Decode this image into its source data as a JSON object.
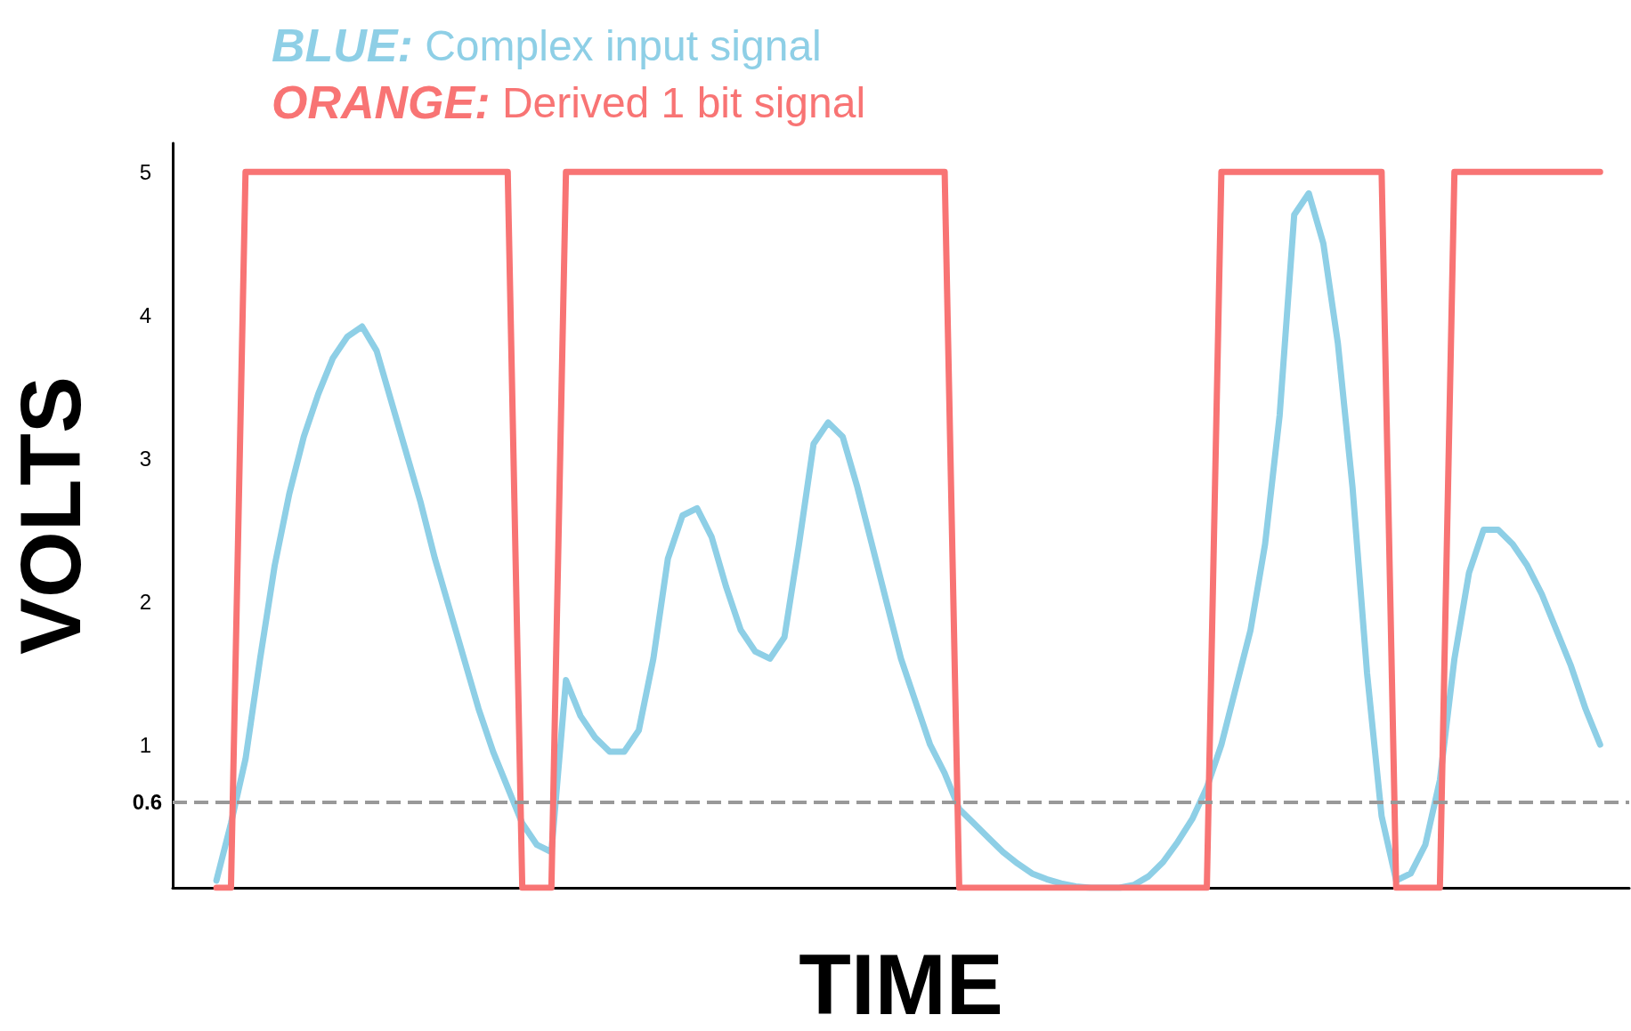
{
  "chart_data": {
    "type": "line",
    "xlabel": "TIME",
    "ylabel": "VOLTS",
    "categories": [
      null,
      null,
      null,
      null,
      null,
      null,
      null,
      null,
      null,
      null,
      null,
      null,
      null,
      null,
      null,
      null,
      null,
      null,
      null,
      null,
      null,
      null,
      null,
      null,
      null,
      null,
      null,
      null,
      null,
      null,
      null,
      null,
      null,
      null,
      null,
      null,
      null,
      null,
      null,
      null,
      null,
      null,
      null,
      null,
      null,
      null,
      null,
      null,
      null,
      null,
      null,
      null,
      null,
      null,
      null,
      null,
      null,
      null,
      null,
      null,
      null,
      null,
      null,
      null,
      null,
      null,
      null,
      null,
      null,
      null,
      null,
      null,
      null,
      null,
      null,
      null,
      null,
      null,
      null,
      null,
      null,
      null,
      null,
      null,
      null,
      null,
      null,
      null,
      null,
      null,
      null,
      null,
      null,
      null,
      null,
      null,
      null,
      null,
      null,
      null,
      null
    ],
    "series": [
      {
        "name": "BLUE: Complex input signal",
        "color": "#8ecfe6",
        "values": [
          null,
          null,
          null,
          0.05,
          0.45,
          0.9,
          1.6,
          2.25,
          2.75,
          3.15,
          3.45,
          3.7,
          3.85,
          3.92,
          3.75,
          3.4,
          3.05,
          2.7,
          2.3,
          1.95,
          1.6,
          1.25,
          0.95,
          0.7,
          0.45,
          0.3,
          0.25,
          1.45,
          1.2,
          1.05,
          0.95,
          0.95,
          1.1,
          1.6,
          2.3,
          2.6,
          2.65,
          2.45,
          2.1,
          1.8,
          1.65,
          1.6,
          1.75,
          2.4,
          3.1,
          3.25,
          3.15,
          2.8,
          2.4,
          2.0,
          1.6,
          1.3,
          1.0,
          0.8,
          0.55,
          0.45,
          0.35,
          0.25,
          0.17,
          0.1,
          0.06,
          0.03,
          0.01,
          0,
          0,
          0,
          0.02,
          0.08,
          0.18,
          0.32,
          0.48,
          0.7,
          1.0,
          1.4,
          1.8,
          2.4,
          3.3,
          4.7,
          4.85,
          4.5,
          3.8,
          2.8,
          1.5,
          0.5,
          0.05,
          0.1,
          0.3,
          0.75,
          1.6,
          2.2,
          2.5,
          2.5,
          2.4,
          2.25,
          2.05,
          1.8,
          1.55,
          1.25,
          1.0,
          null,
          null
        ]
      },
      {
        "name": "ORANGE: Derived 1 bit signal",
        "color": "#f87474",
        "values": [
          null,
          null,
          null,
          0,
          0,
          5,
          5,
          5,
          5,
          5,
          5,
          5,
          5,
          5,
          5,
          5,
          5,
          5,
          5,
          5,
          5,
          5,
          5,
          5,
          0,
          0,
          0,
          5,
          5,
          5,
          5,
          5,
          5,
          5,
          5,
          5,
          5,
          5,
          5,
          5,
          5,
          5,
          5,
          5,
          5,
          5,
          5,
          5,
          5,
          5,
          5,
          5,
          5,
          5,
          0,
          0,
          0,
          0,
          0,
          0,
          0,
          0,
          0,
          0,
          0,
          0,
          0,
          0,
          0,
          0,
          0,
          0,
          5,
          5,
          5,
          5,
          5,
          5,
          5,
          5,
          5,
          5,
          5,
          5,
          0,
          0,
          0,
          0,
          5,
          5,
          5,
          5,
          5,
          5,
          5,
          5,
          5,
          5,
          5,
          null,
          null
        ]
      }
    ],
    "ylim": [
      0,
      5.2
    ],
    "yticks": [
      1,
      2,
      3,
      4,
      5
    ],
    "tick_labels": "y",
    "grid": false,
    "legend": "top left",
    "marker": "none",
    "line_style": "solid",
    "ref_lines": [
      {
        "axis": "y",
        "value": 0.6,
        "label": "0.6",
        "color": "#999999",
        "line_style": "dashed"
      }
    ]
  }
}
